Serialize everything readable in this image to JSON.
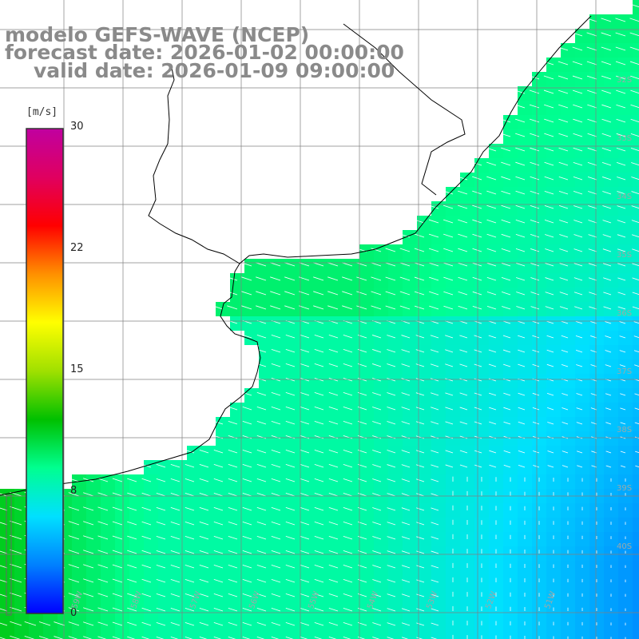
{
  "title": {
    "model": "modelo GEFS-WAVE (NCEP)",
    "forecast": "forecast date: 2026-01-02 00:00:00",
    "valid": "valid date: 2026-01-09 09:00:00"
  },
  "colorbar": {
    "unit": "[m/s]",
    "ticks": [
      "30",
      "22",
      "15",
      "8",
      "0"
    ],
    "tick_values": [
      30,
      22,
      15,
      8,
      0
    ],
    "range": [
      0,
      30
    ],
    "palette": [
      "#0000ff",
      "#0080ff",
      "#00e0ff",
      "#00ff90",
      "#00c000",
      "#a0e000",
      "#ffff00",
      "#ff9000",
      "#ff0000",
      "#e00060",
      "#c000a0"
    ]
  },
  "latitude_labels": [
    "32S",
    "33S",
    "34S",
    "35S",
    "36S",
    "37S",
    "38S",
    "39S",
    "40S"
  ],
  "longitude_labels": [
    "59W",
    "58W",
    "57W",
    "56W",
    "55W",
    "54W",
    "53W",
    "52W",
    "51W"
  ],
  "colors": {
    "land": "#ffffff",
    "coast": "#000000",
    "grid": "#808080",
    "vector": "#ffffff",
    "title": "#8a8a8a"
  }
}
